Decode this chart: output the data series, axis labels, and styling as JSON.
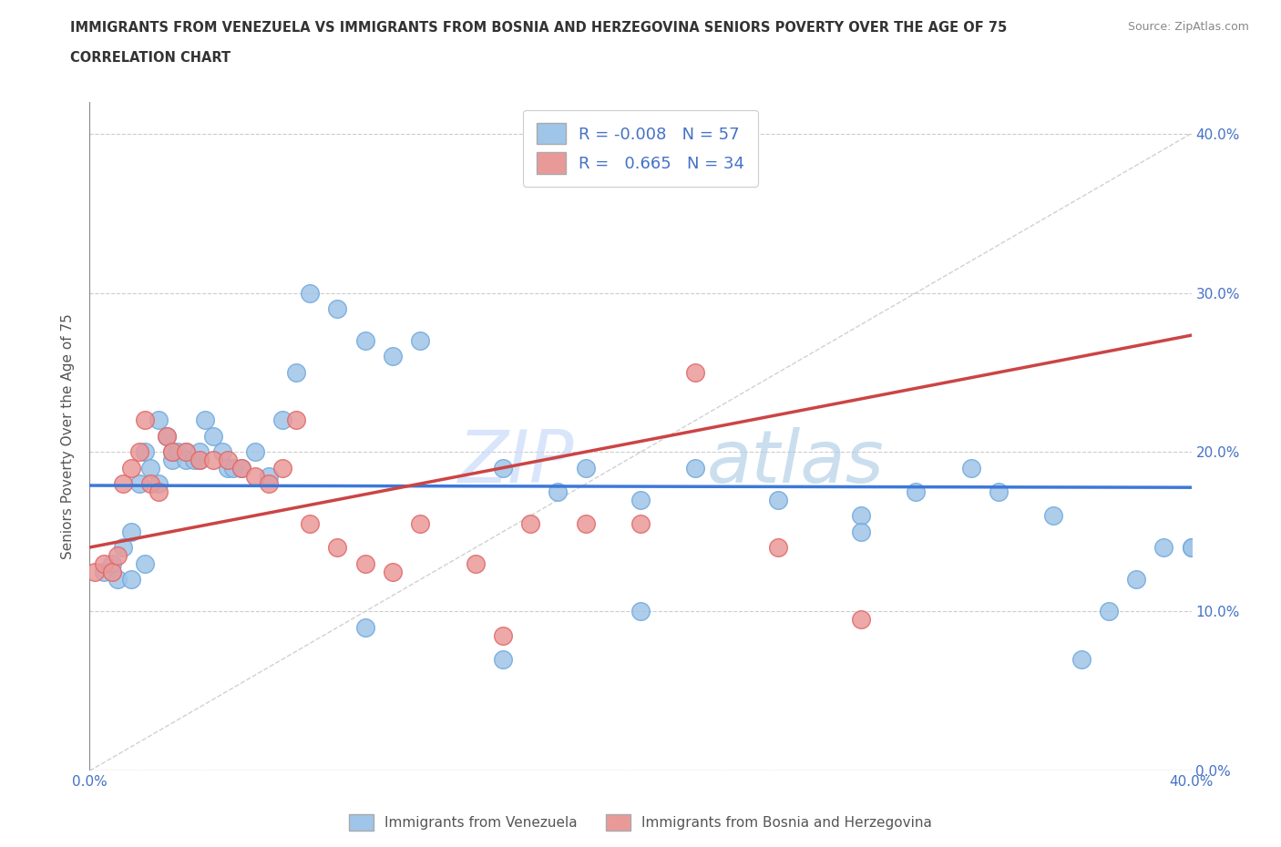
{
  "title_line1": "IMMIGRANTS FROM VENEZUELA VS IMMIGRANTS FROM BOSNIA AND HERZEGOVINA SENIORS POVERTY OVER THE AGE OF 75",
  "title_line2": "CORRELATION CHART",
  "source": "Source: ZipAtlas.com",
  "ylabel": "Seniors Poverty Over the Age of 75",
  "xlim": [
    0.0,
    0.4
  ],
  "ylim": [
    0.0,
    0.42
  ],
  "ytick_labels": [
    "0.0%",
    "10.0%",
    "20.0%",
    "30.0%",
    "40.0%"
  ],
  "ytick_values": [
    0.0,
    0.1,
    0.2,
    0.3,
    0.4
  ],
  "xtick_values": [
    0.0,
    0.1,
    0.2,
    0.3,
    0.4
  ],
  "legend_blue_R": "-0.008",
  "legend_blue_N": "57",
  "legend_pink_R": "0.665",
  "legend_pink_N": "34",
  "legend_blue_label": "Immigrants from Venezuela",
  "legend_pink_label": "Immigrants from Bosnia and Herzegovina",
  "blue_color": "#9fc5e8",
  "blue_edge_color": "#6fa8dc",
  "pink_color": "#ea9999",
  "pink_edge_color": "#e06666",
  "blue_line_color": "#3c78d8",
  "pink_line_color": "#cc4444",
  "diag_line_color": "#cccccc",
  "watermark_zip_color": "#c9daf8",
  "watermark_atlas_color": "#b4d0e8",
  "blue_scatter_x": [
    0.005,
    0.008,
    0.01,
    0.012,
    0.015,
    0.015,
    0.018,
    0.02,
    0.02,
    0.022,
    0.025,
    0.025,
    0.028,
    0.03,
    0.03,
    0.032,
    0.035,
    0.035,
    0.038,
    0.04,
    0.04,
    0.042,
    0.045,
    0.048,
    0.05,
    0.052,
    0.055,
    0.06,
    0.065,
    0.07,
    0.075,
    0.08,
    0.09,
    0.1,
    0.11,
    0.12,
    0.15,
    0.17,
    0.18,
    0.2,
    0.22,
    0.25,
    0.28,
    0.3,
    0.33,
    0.35,
    0.37,
    0.38,
    0.39,
    0.28,
    0.32,
    0.2,
    0.15,
    0.1,
    0.36,
    0.4,
    0.4
  ],
  "blue_scatter_y": [
    0.125,
    0.13,
    0.12,
    0.14,
    0.12,
    0.15,
    0.18,
    0.13,
    0.2,
    0.19,
    0.22,
    0.18,
    0.21,
    0.195,
    0.2,
    0.2,
    0.2,
    0.195,
    0.195,
    0.195,
    0.2,
    0.22,
    0.21,
    0.2,
    0.19,
    0.19,
    0.19,
    0.2,
    0.185,
    0.22,
    0.25,
    0.3,
    0.29,
    0.27,
    0.26,
    0.27,
    0.19,
    0.175,
    0.19,
    0.17,
    0.19,
    0.17,
    0.16,
    0.175,
    0.175,
    0.16,
    0.1,
    0.12,
    0.14,
    0.15,
    0.19,
    0.1,
    0.07,
    0.09,
    0.07,
    0.14,
    0.14
  ],
  "pink_scatter_x": [
    0.002,
    0.005,
    0.008,
    0.01,
    0.012,
    0.015,
    0.018,
    0.02,
    0.022,
    0.025,
    0.028,
    0.03,
    0.035,
    0.04,
    0.045,
    0.05,
    0.055,
    0.06,
    0.065,
    0.07,
    0.075,
    0.08,
    0.09,
    0.1,
    0.11,
    0.12,
    0.14,
    0.15,
    0.16,
    0.18,
    0.2,
    0.22,
    0.25,
    0.28
  ],
  "pink_scatter_y": [
    0.125,
    0.13,
    0.125,
    0.135,
    0.18,
    0.19,
    0.2,
    0.22,
    0.18,
    0.175,
    0.21,
    0.2,
    0.2,
    0.195,
    0.195,
    0.195,
    0.19,
    0.185,
    0.18,
    0.19,
    0.22,
    0.155,
    0.14,
    0.13,
    0.125,
    0.155,
    0.13,
    0.085,
    0.155,
    0.155,
    0.155,
    0.25,
    0.14,
    0.095
  ]
}
